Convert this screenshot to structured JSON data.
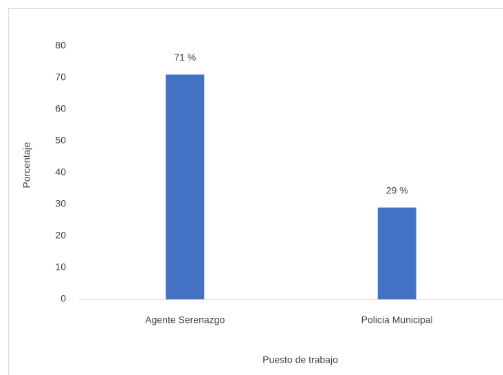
{
  "chart_data": {
    "type": "bar",
    "x_label": "Puesto de trabajo",
    "y_label": "Porcentaje",
    "categories": [
      "Agente Serenazgo",
      "Policia Municipal"
    ],
    "values": [
      71,
      29
    ],
    "value_labels": [
      "71 %",
      "29 %"
    ],
    "color": "#4472c4",
    "ylim": [
      0,
      80
    ],
    "yticks": [
      0,
      10,
      20,
      30,
      40,
      50,
      60,
      70,
      80
    ],
    "grid": false
  }
}
